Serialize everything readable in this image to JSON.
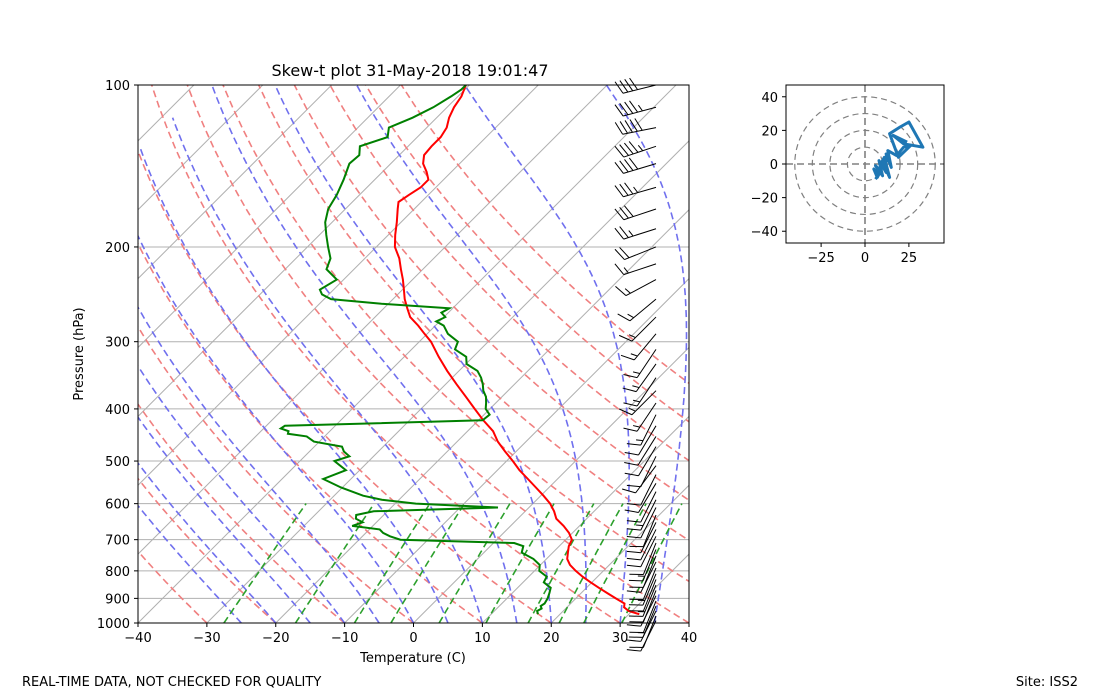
{
  "footer": {
    "left_text": "REAL-TIME DATA, NOT CHECKED FOR QUALITY",
    "right_text": "Site: ISS2"
  },
  "colors": {
    "temperature": "#ff0000",
    "dewpoint": "#008000",
    "dry_adiabats": "#f08080",
    "moist_adiabats": "#7070ee",
    "mixing_ratio": "#2ca02c",
    "isotherms": "#b0b0b0",
    "hodograph": "#1f77b4",
    "barbs": "#000000",
    "rings": "#808080"
  },
  "chart_data": [
    {
      "type": "skew-t",
      "title": "Skew-t plot 31-May-2018 19:01:47",
      "xlabel": "Temperature (C)",
      "ylabel": "Pressure (hPa)",
      "xlim": [
        -40,
        40
      ],
      "ylim": [
        1000,
        100
      ],
      "y_scale": "log",
      "x_ticks": [
        -40,
        -30,
        -20,
        -10,
        0,
        10,
        20,
        30,
        40
      ],
      "y_ticks": [
        100,
        200,
        300,
        400,
        500,
        600,
        700,
        800,
        900,
        1000
      ],
      "grid": true,
      "series": [
        {
          "p": [
            963,
            950,
            935,
            920,
            900,
            880,
            860,
            840,
            820,
            800,
            780,
            760,
            740,
            720,
            700,
            680,
            660,
            640,
            620,
            600,
            580,
            560,
            540,
            520,
            500,
            480,
            460,
            440,
            420,
            400,
            380,
            360,
            340,
            320,
            300,
            290,
            280,
            270,
            260,
            250,
            240,
            230,
            220,
            210,
            200,
            190,
            180,
            170,
            165,
            160,
            155,
            150,
            145,
            140,
            135,
            130,
            125,
            120,
            115,
            110,
            105,
            100
          ],
          "t": [
            31.5,
            29.5,
            28.3,
            27.8,
            25.8,
            23.8,
            21.8,
            19.8,
            17.8,
            16.0,
            14.3,
            13.0,
            12.2,
            11.4,
            10.9,
            9.5,
            7.7,
            5.6,
            4.2,
            2.5,
            0.4,
            -1.9,
            -4.3,
            -6.8,
            -9.1,
            -11.6,
            -14.1,
            -16.3,
            -19.3,
            -22.2,
            -25.2,
            -28.4,
            -31.7,
            -35.0,
            -38.3,
            -40.4,
            -42.5,
            -44.9,
            -46.6,
            -48.3,
            -49.8,
            -51.4,
            -53.2,
            -55.0,
            -57.3,
            -59.0,
            -60.6,
            -62.4,
            -63.3,
            -62.8,
            -62.2,
            -62.2,
            -63.6,
            -65.3,
            -66.4,
            -66.6,
            -66.6,
            -67.1,
            -68.2,
            -69.0,
            -69.5,
            -70.5
          ]
        },
        {
          "p": [
            963,
            950,
            940,
            930,
            920,
            900,
            880,
            860,
            840,
            820,
            800,
            780,
            760,
            740,
            720,
            710,
            700,
            690,
            680,
            670,
            660,
            650,
            640,
            630,
            620,
            610,
            600,
            590,
            580,
            560,
            540,
            520,
            500,
            490,
            480,
            470,
            460,
            450,
            445,
            440,
            435,
            430,
            420,
            410,
            400,
            390,
            380,
            370,
            360,
            350,
            340,
            330,
            320,
            310,
            300,
            290,
            280,
            275,
            270,
            265,
            260,
            255,
            250,
            245,
            240,
            230,
            220,
            210,
            200,
            190,
            180,
            170,
            160,
            150,
            140,
            135,
            130,
            125,
            120,
            115,
            110,
            105,
            102,
            100
          ],
          "t": [
            16.8,
            16.2,
            16.5,
            16.0,
            16.2,
            15.9,
            15.4,
            14.8,
            13.0,
            12.6,
            10.7,
            9.9,
            8.1,
            5.5,
            4.8,
            3.0,
            -14.0,
            -16.0,
            -17.5,
            -18.5,
            -23.0,
            -22.0,
            -23.5,
            -24.0,
            -22.0,
            -4.5,
            -17.0,
            -22.5,
            -25.8,
            -30.2,
            -34.0,
            -32.0,
            -35.0,
            -33.5,
            -35.0,
            -36.0,
            -40.8,
            -42.6,
            -45.7,
            -46.0,
            -47.5,
            -47.3,
            -19.4,
            -19.2,
            -20.6,
            -21.4,
            -22.3,
            -23.6,
            -24.6,
            -25.8,
            -27.3,
            -29.9,
            -31.0,
            -33.7,
            -34.4,
            -37.0,
            -38.8,
            -40.5,
            -39.8,
            -41.0,
            -40.5,
            -51.0,
            -59.0,
            -61.0,
            -62.0,
            -61.0,
            -64.0,
            -65.0,
            -67.0,
            -69.0,
            -71.0,
            -72.5,
            -73.3,
            -74.5,
            -76.0,
            -75.8,
            -77.0,
            -74.3,
            -75.5,
            -73.5,
            -72.0,
            -71.0,
            -70.5,
            -70.5
          ]
        }
      ],
      "barbs": [
        {
          "p": 100,
          "u": 40,
          "v": 10
        },
        {
          "p": 110,
          "u": 45,
          "v": 12
        },
        {
          "p": 120,
          "u": 50,
          "v": 10
        },
        {
          "p": 130,
          "u": 45,
          "v": 15
        },
        {
          "p": 140,
          "u": 40,
          "v": 12
        },
        {
          "p": 155,
          "u": 35,
          "v": 10
        },
        {
          "p": 170,
          "u": 30,
          "v": 10
        },
        {
          "p": 185,
          "u": 25,
          "v": 8
        },
        {
          "p": 200,
          "u": 20,
          "v": 8
        },
        {
          "p": 215,
          "u": 15,
          "v": 5
        },
        {
          "p": 230,
          "u": 15,
          "v": 8
        },
        {
          "p": 250,
          "u": 12,
          "v": 10
        },
        {
          "p": 270,
          "u": 10,
          "v": 10
        },
        {
          "p": 290,
          "u": 10,
          "v": 12
        },
        {
          "p": 310,
          "u": 8,
          "v": 12
        },
        {
          "p": 330,
          "u": 10,
          "v": 14
        },
        {
          "p": 350,
          "u": 8,
          "v": 12
        },
        {
          "p": 370,
          "u": 10,
          "v": 10
        },
        {
          "p": 390,
          "u": 8,
          "v": 12
        },
        {
          "p": 410,
          "u": 6,
          "v": 12
        },
        {
          "p": 430,
          "u": 6,
          "v": 10
        },
        {
          "p": 450,
          "u": 5,
          "v": 8
        },
        {
          "p": 470,
          "u": 6,
          "v": 10
        },
        {
          "p": 490,
          "u": 5,
          "v": 10
        },
        {
          "p": 510,
          "u": 6,
          "v": 8
        },
        {
          "p": 530,
          "u": 5,
          "v": 10
        },
        {
          "p": 550,
          "u": 6,
          "v": 10
        },
        {
          "p": 570,
          "u": 5,
          "v": 10
        },
        {
          "p": 590,
          "u": 6,
          "v": 12
        },
        {
          "p": 610,
          "u": 5,
          "v": 10
        },
        {
          "p": 630,
          "u": 4,
          "v": 10
        },
        {
          "p": 650,
          "u": 5,
          "v": 10
        },
        {
          "p": 670,
          "u": 4,
          "v": 8
        },
        {
          "p": 690,
          "u": 5,
          "v": 10
        },
        {
          "p": 710,
          "u": 4,
          "v": 10
        },
        {
          "p": 730,
          "u": 5,
          "v": 12
        },
        {
          "p": 750,
          "u": 4,
          "v": 10
        },
        {
          "p": 770,
          "u": 5,
          "v": 10
        },
        {
          "p": 790,
          "u": 4,
          "v": 10
        },
        {
          "p": 810,
          "u": 5,
          "v": 12
        },
        {
          "p": 830,
          "u": 4,
          "v": 10
        },
        {
          "p": 850,
          "u": 5,
          "v": 12
        },
        {
          "p": 870,
          "u": 4,
          "v": 10
        },
        {
          "p": 890,
          "u": 5,
          "v": 10
        },
        {
          "p": 910,
          "u": 4,
          "v": 10
        },
        {
          "p": 930,
          "u": 5,
          "v": 12
        },
        {
          "p": 950,
          "u": 5,
          "v": 10
        },
        {
          "p": 970,
          "u": 4,
          "v": 10
        },
        {
          "p": 990,
          "u": 4,
          "v": 8
        }
      ]
    },
    {
      "type": "hodograph",
      "xlim": [
        -45,
        45
      ],
      "ylim": [
        -47,
        47
      ],
      "x_ticks": [
        -25,
        0,
        25
      ],
      "y_ticks": [
        40,
        20,
        0,
        -20,
        -40
      ],
      "ring_radii": [
        10,
        20,
        30,
        40
      ],
      "u": [
        6,
        8,
        5,
        7,
        9,
        6,
        10,
        8,
        12,
        10,
        14,
        11,
        9,
        13,
        12,
        15,
        13,
        18,
        22,
        26,
        19,
        14,
        20,
        25,
        33,
        22,
        16,
        24
      ],
      "v": [
        -9,
        -6,
        -3,
        -8,
        -4,
        -1,
        -7,
        2,
        -5,
        1,
        -8,
        4,
        0,
        2,
        6,
        -2,
        8,
        5,
        10,
        11,
        4,
        18,
        22,
        25,
        10,
        12,
        17,
        13
      ]
    }
  ]
}
